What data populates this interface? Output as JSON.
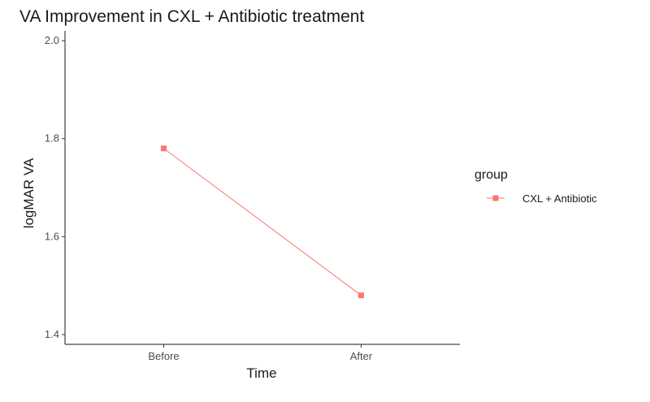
{
  "chart_data": {
    "type": "line",
    "title": "VA Improvement in CXL + Antibiotic treatment",
    "xlabel": "Time",
    "ylabel": "logMAR VA",
    "categories": [
      "Before",
      "After"
    ],
    "series": [
      {
        "name": "CXL + Antibiotic",
        "values": [
          1.78,
          1.48
        ],
        "color": "#F8766D"
      }
    ],
    "ylim": [
      1.38,
      2.02
    ],
    "yticks": [
      1.4,
      1.6,
      1.8,
      2.0
    ],
    "ytick_labels": [
      "1.4",
      "1.6",
      "1.8",
      "2.0"
    ],
    "grid": false,
    "legend": {
      "title": "group",
      "position": "right"
    }
  }
}
